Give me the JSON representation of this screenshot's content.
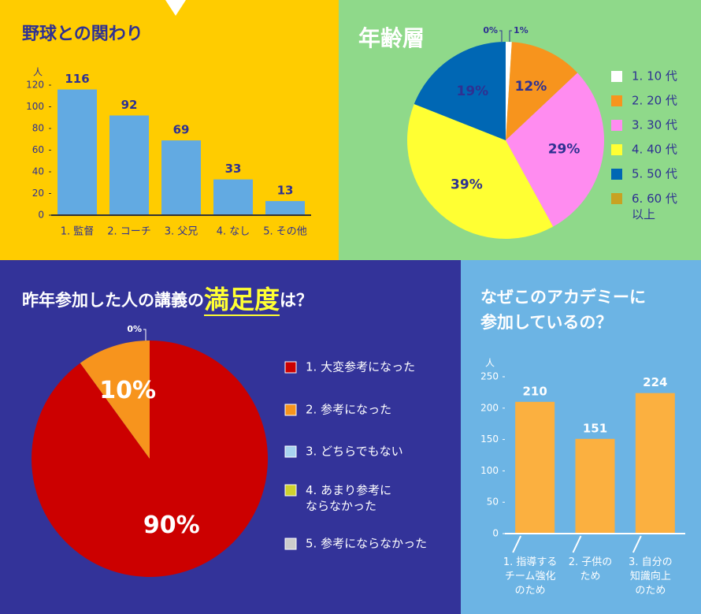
{
  "chart_data": [
    {
      "type": "bar",
      "title": "野球との関わり",
      "y_label": "人",
      "categories": [
        "1. 監督",
        "2. コーチ",
        "3. 父兄",
        "4. なし",
        "5. その他"
      ],
      "values": [
        116,
        92,
        69,
        33,
        13
      ],
      "color": "#62aae2",
      "ylim": [
        0,
        120
      ],
      "yticks": [
        0,
        20,
        40,
        60,
        80,
        100,
        120
      ]
    },
    {
      "type": "pie",
      "title": "年齢層",
      "categories": [
        "1. 10 代",
        "2. 20 代",
        "3. 30 代",
        "4. 40 代",
        "5. 50 代",
        "6. 60 代\n以上"
      ],
      "values": [
        1,
        12,
        29,
        39,
        19,
        0
      ],
      "value_labels": [
        "1%",
        "12%",
        "29%",
        "39%",
        "19%",
        "0%"
      ],
      "colors": [
        "#ffffff",
        "#f7941d",
        "#ff8cf0",
        "#ffff33",
        "#0067b4",
        "#c8a222"
      ]
    },
    {
      "type": "pie",
      "title_parts": [
        "昨年参加した人の講義の",
        "満足度",
        "は？"
      ],
      "categories": [
        "1. 大変参考になった",
        "2. 参考になった",
        "3. どちらでもない",
        "4. あまり参考に\nならなかった",
        "5. 参考にならなかった"
      ],
      "values": [
        90,
        10,
        0,
        0,
        0
      ],
      "value_labels": [
        "90%",
        "10%",
        "0%",
        null,
        null
      ],
      "colors": [
        "#cc0000",
        "#f7941d",
        "#a8d4f0",
        "#cfd12e",
        "#cccccc"
      ]
    },
    {
      "type": "bar",
      "title": "なぜこのアカデミーに\n参加しているの？",
      "y_label": "人",
      "categories": [
        "1. 指導する\nチーム強化\nのため",
        "2. 子供の\nため",
        "3. 自分の\n知識向上\nのため"
      ],
      "values": [
        210,
        151,
        224
      ],
      "color": "#fbb040",
      "ylim": [
        0,
        250
      ],
      "yticks": [
        0,
        50,
        100,
        150,
        200,
        250
      ]
    }
  ]
}
